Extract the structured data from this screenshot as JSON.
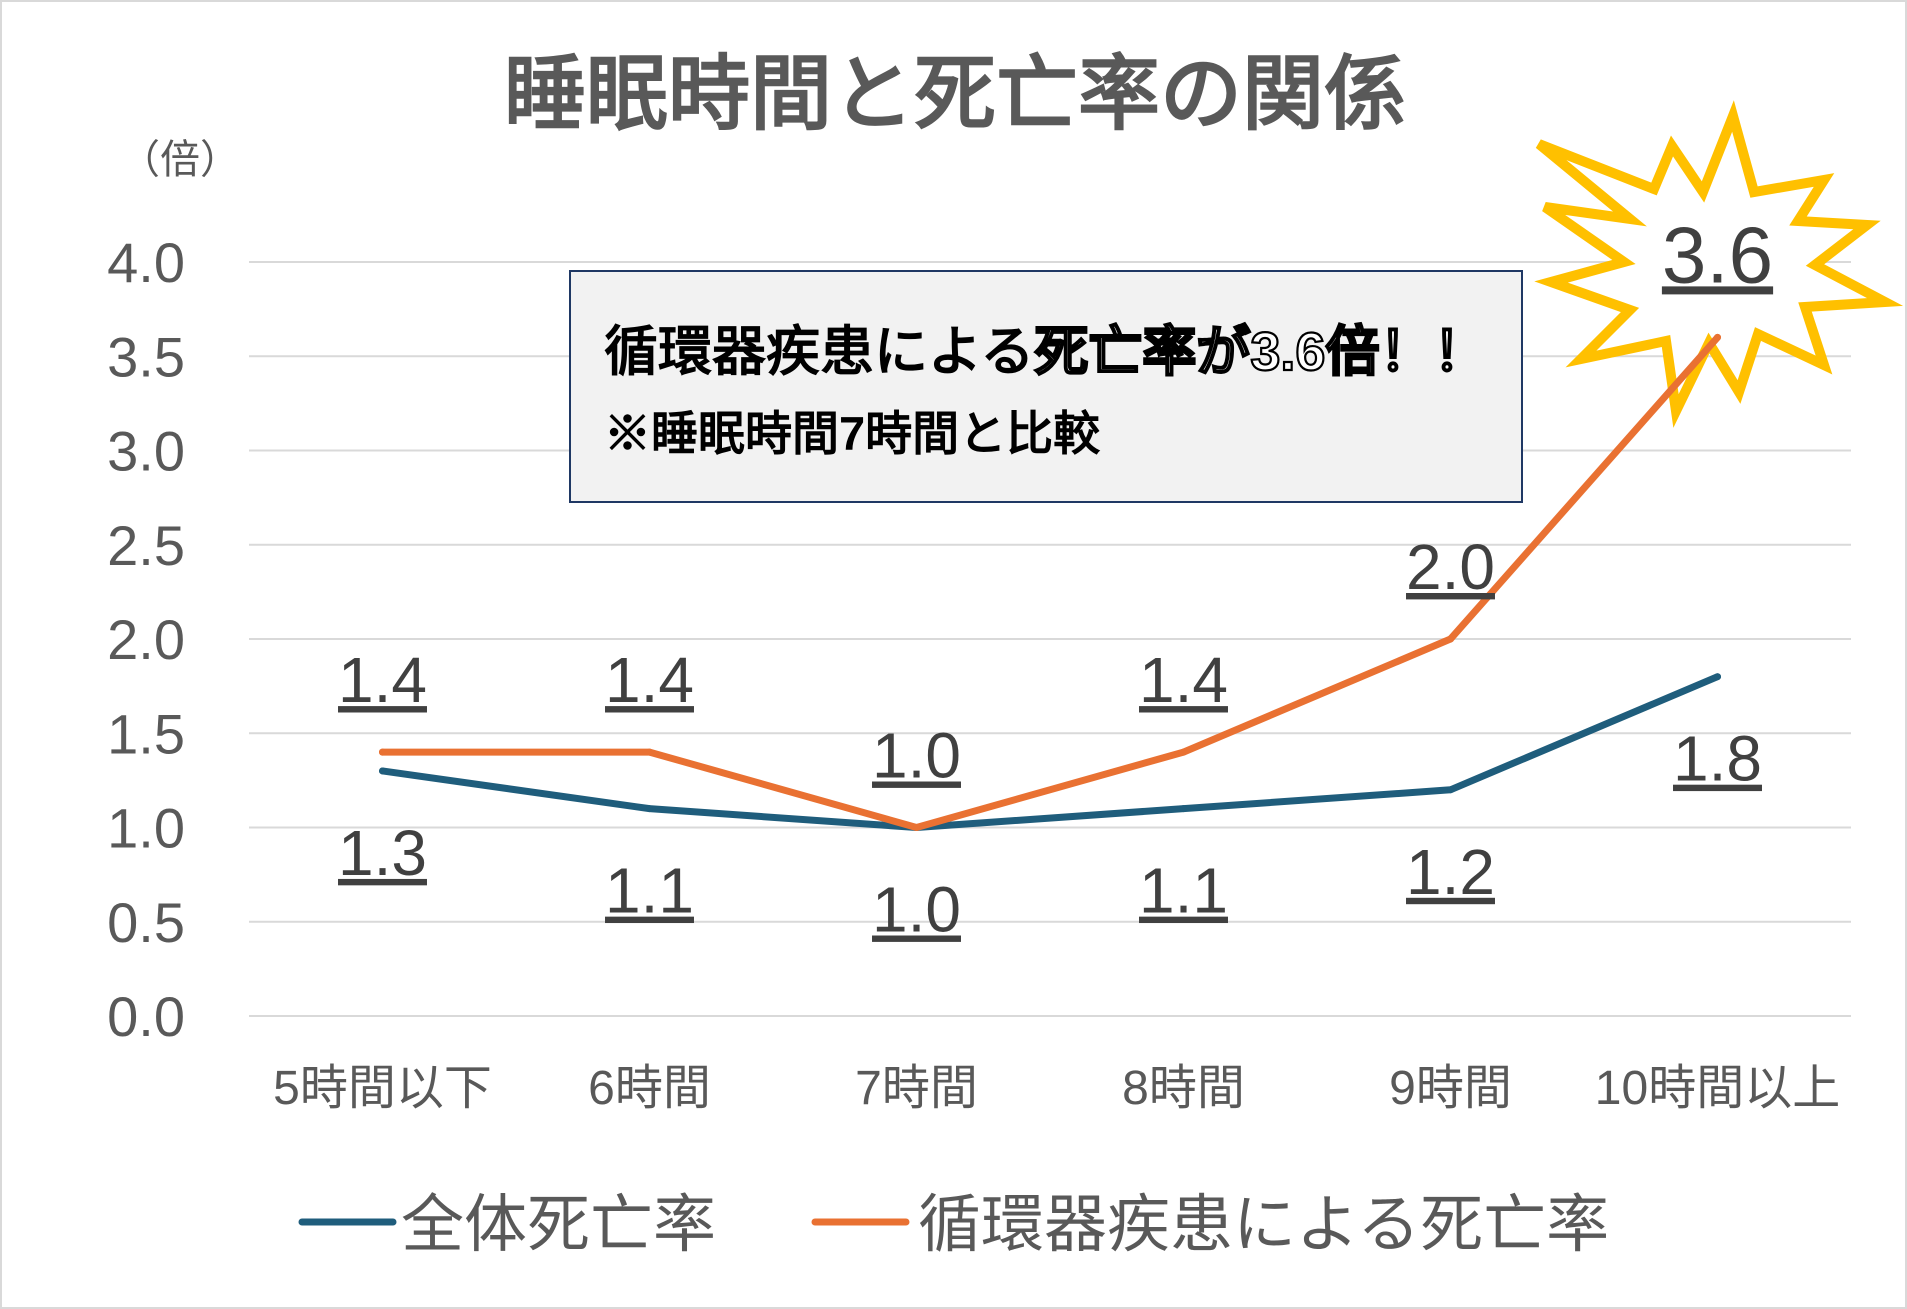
{
  "chart_data": {
    "type": "line",
    "title": "睡眠時間と死亡率の関係",
    "ylabel": "（倍）",
    "categories": [
      "5時間以下",
      "6時間",
      "7時間",
      "8時間",
      "9時間",
      "10時間以上"
    ],
    "ylim": [
      0,
      4
    ],
    "yticks": [
      0,
      0.5,
      1,
      1.5,
      2,
      2.5,
      3,
      3.5,
      4
    ],
    "grid": true,
    "legend": "bottom",
    "data_labels": true,
    "series": [
      {
        "name": "全体死亡率",
        "color": "#1F5D7C",
        "values": [
          1.3,
          1.1,
          1.0,
          1.1,
          1.2,
          1.8
        ],
        "label_position": "below"
      },
      {
        "name": "循環器疾患による死亡率",
        "color": "#E97132",
        "values": [
          1.4,
          1.4,
          1.0,
          1.4,
          2.0,
          3.6
        ],
        "label_position": "above"
      }
    ],
    "highlight": {
      "series": 1,
      "point": 5,
      "icon": "starburst-icon",
      "fill": "#FFFFFF",
      "stroke": "#FFC000"
    },
    "callout": {
      "line1_plain": "循環器疾患による",
      "line1_emphasis": "死亡率が3.6倍！！",
      "line2": "※睡眠時間7時間と比較"
    }
  },
  "colors": {
    "text": "#595959",
    "data_label": "#404040",
    "grid": "#D9D9D9",
    "callout_fill": "#F2F2F2",
    "callout_border": "#1F3864"
  }
}
